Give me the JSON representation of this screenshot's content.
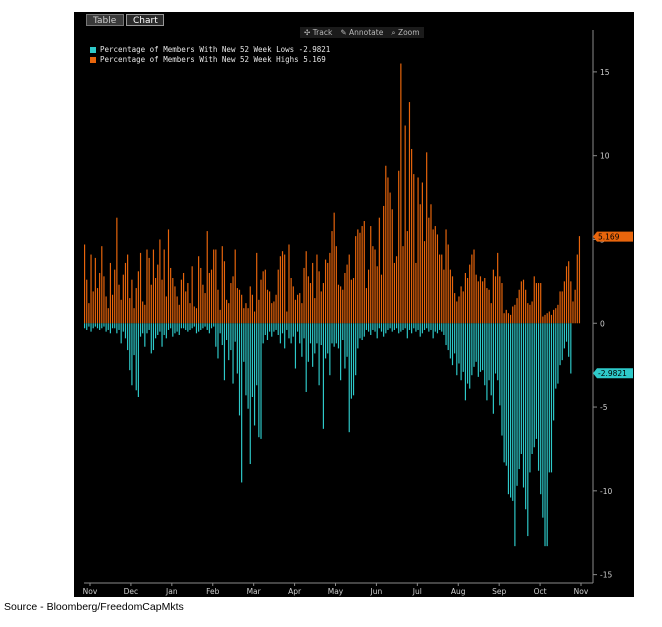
{
  "tabs": [
    {
      "label": "Table"
    },
    {
      "label": "Chart"
    }
  ],
  "toolbar": {
    "track": "Track",
    "annotate": "Annotate",
    "zoom": "Zoom"
  },
  "legend": [
    {
      "label": "Percentage of Members With New 52 Week Lows  -2.9821",
      "color": "#2ec9c9"
    },
    {
      "label": "Percentage of Members With New 52 Week Highs 5.169",
      "color": "#e8650c"
    }
  ],
  "source": "Source - Bloomberg/FreedomCapMkts",
  "chart_data": {
    "type": "bar",
    "ylim": [
      -15.5,
      17.5
    ],
    "yticks": [
      15,
      10,
      5,
      0,
      -5,
      -10,
      -15
    ],
    "xticks": [
      "Nov",
      "Dec",
      "Jan",
      "Feb",
      "Mar",
      "Apr",
      "May",
      "Jun",
      "Jul",
      "Aug",
      "Sep",
      "Oct",
      "Nov"
    ],
    "last_values": {
      "lows": "-2.9821",
      "highs": "5.169"
    },
    "series": [
      {
        "name": "Percentage of Members With New 52 Week Highs",
        "color": "#e8650c",
        "values": [
          4.7,
          2.6,
          1.2,
          4.1,
          1.9,
          3.9,
          2.1,
          3.0,
          4.6,
          2.8,
          1.6,
          0.9,
          3.6,
          1.7,
          3.2,
          6.3,
          2.3,
          1.4,
          2.9,
          3.6,
          4.1,
          1.5,
          2.6,
          0.9,
          2.1,
          3.1,
          4.2,
          1.3,
          1.1,
          4.4,
          3.9,
          2.3,
          4.4,
          2.7,
          3.5,
          5.0,
          2.6,
          4.4,
          1.6,
          5.6,
          3.3,
          2.7,
          2.2,
          1.6,
          1.1,
          2.6,
          3.0,
          1.9,
          2.4,
          1.2,
          3.4,
          1.0,
          0.9,
          4.0,
          3.3,
          2.3,
          1.8,
          5.5,
          3.0,
          3.2,
          4.4,
          4.4,
          2.0,
          0.8,
          4.6,
          3.7,
          1.4,
          1.2,
          2.4,
          2.8,
          4.4,
          2.1,
          2.0,
          1.7,
          0.9,
          1.2,
          0.9,
          2.2,
          1.7,
          0.7,
          4.2,
          1.4,
          2.6,
          3.1,
          3.2,
          2.0,
          1.9,
          1.2,
          1.3,
          1.7,
          3.2,
          4.0,
          4.3,
          4.1,
          0.7,
          4.7,
          2.7,
          2.2,
          1.4,
          1.7,
          1.8,
          1.2,
          3.3,
          4.3,
          2.8,
          2.4,
          3.6,
          1.5,
          4.1,
          3.1,
          1.9,
          2.4,
          3.8,
          3.6,
          4.2,
          5.5,
          6.6,
          4.6,
          2.3,
          2.2,
          2.0,
          3.0,
          3.5,
          4.1,
          2.6,
          2.7,
          5.2,
          5.6,
          5.4,
          5.8,
          6.1,
          2.1,
          3.2,
          5.8,
          4.6,
          4.4,
          3.4,
          6.3,
          2.9,
          7.0,
          9.4,
          8.7,
          7.8,
          6.8,
          3.6,
          4.0,
          9.1,
          15.5,
          4.6,
          11.8,
          5.5,
          13.2,
          10.4,
          8.9,
          3.6,
          8.7,
          7.1,
          8.4,
          4.9,
          10.2,
          6.3,
          7.1,
          5.6,
          5.8,
          5.3,
          4.1,
          4.1,
          3.2,
          5.6,
          4.7,
          3.2,
          2.8,
          1.8,
          1.3,
          1.6,
          2.2,
          1.9,
          3.0,
          2.7,
          3.5,
          4.1,
          4.4,
          2.9,
          2.5,
          2.8,
          2.5,
          2.7,
          2.1,
          2.0,
          1.2,
          3.2,
          2.8,
          4.2,
          2.8,
          2.4,
          0.6,
          0.8,
          0.6,
          0.5,
          1.0,
          1.1,
          1.5,
          2.0,
          2.5,
          2.6,
          2.0,
          1.2,
          1.1,
          1.3,
          2.8,
          2.4,
          2.4,
          2.4,
          0.4,
          0.5,
          0.6,
          0.7,
          0.5,
          0.8,
          0.9,
          1.1,
          1.9,
          1.9,
          2.5,
          3.4,
          3.7,
          2.5,
          1.3,
          2.0,
          4.1,
          5.2
        ]
      },
      {
        "name": "Percentage of Members With New 52 Week Lows",
        "color": "#2ec9c9",
        "values": [
          -0.3,
          -0.4,
          -0.2,
          -0.5,
          -0.3,
          -0.2,
          -0.3,
          -0.4,
          -0.3,
          -0.2,
          -0.5,
          -0.4,
          -0.6,
          -0.3,
          -0.3,
          -0.6,
          -0.4,
          -1.2,
          -0.5,
          -0.9,
          -1.6,
          -2.8,
          -3.7,
          -1.9,
          -4.0,
          -4.4,
          -0.8,
          -0.6,
          -1.4,
          -0.6,
          -0.4,
          -1.8,
          -1.6,
          -0.9,
          -0.7,
          -0.5,
          -1.4,
          -0.7,
          -0.9,
          -0.4,
          -0.3,
          -0.8,
          -0.6,
          -0.5,
          -0.7,
          -0.3,
          -0.3,
          -0.4,
          -0.5,
          -0.4,
          -0.3,
          -0.2,
          -0.6,
          -0.5,
          -0.4,
          -0.3,
          -0.2,
          -0.4,
          -0.6,
          -0.3,
          -0.2,
          -1.4,
          -2.1,
          -0.6,
          -1.3,
          -3.4,
          -1.0,
          -2.2,
          -1.6,
          -3.6,
          -1.1,
          -3.0,
          -5.5,
          -9.5,
          -2.3,
          -4.3,
          -5.1,
          -8.4,
          -4.4,
          -6.1,
          -3.7,
          -6.8,
          -6.9,
          -1.2,
          -0.7,
          -1.0,
          -0.5,
          -0.8,
          -0.5,
          -0.4,
          -0.7,
          -1.2,
          -0.6,
          -1.5,
          -0.4,
          -0.9,
          -1.2,
          -0.8,
          -2.7,
          -0.5,
          -1.2,
          -2.0,
          -0.9,
          -4.1,
          -2.3,
          -1.2,
          -2.6,
          -1.8,
          -1.2,
          -3.7,
          -1.3,
          -6.3,
          -2.1,
          -1.8,
          -3.1,
          -1.2,
          -1.4,
          -1.2,
          -1.5,
          -3.4,
          -1.0,
          -2.7,
          -2.0,
          -6.5,
          -4.5,
          -4.3,
          -3.1,
          -1.5,
          -0.9,
          -1.0,
          -0.8,
          -0.4,
          -0.5,
          -0.7,
          -0.4,
          -0.5,
          -0.9,
          -0.3,
          -0.5,
          -0.8,
          -0.6,
          -0.4,
          -0.3,
          -0.5,
          -0.4,
          -0.3,
          -0.6,
          -0.5,
          -0.4,
          -0.3,
          -0.9,
          -0.4,
          -0.6,
          -0.3,
          -0.5,
          -0.4,
          -0.8,
          -0.6,
          -0.4,
          -0.3,
          -0.5,
          -0.4,
          -0.9,
          -0.5,
          -0.6,
          -0.4,
          -0.5,
          -0.7,
          -1.3,
          -1.6,
          -2.1,
          -2.5,
          -1.8,
          -3.1,
          -2.4,
          -3.4,
          -2.9,
          -4.6,
          -3.6,
          -3.9,
          -3.1,
          -2.6,
          -2.3,
          -3.2,
          -2.9,
          -2.8,
          -3.7,
          -4.6,
          -3.4,
          -4.3,
          -5.4,
          -3.0,
          -3.4,
          -4.9,
          -6.7,
          -8.3,
          -8.5,
          -10.2,
          -10.4,
          -10.6,
          -13.3,
          -9.7,
          -8.7,
          -7.8,
          -9.8,
          -11.1,
          -12.7,
          -8.9,
          -7.8,
          -7.4,
          -6.9,
          -8.8,
          -10.2,
          -11.6,
          -13.3,
          -13.3,
          -8.9,
          -8.9,
          -5.8,
          -3.9,
          -3.6,
          -2.5,
          -2.2,
          -1.5,
          -1.1,
          -2.0,
          -3.0
        ]
      }
    ]
  }
}
